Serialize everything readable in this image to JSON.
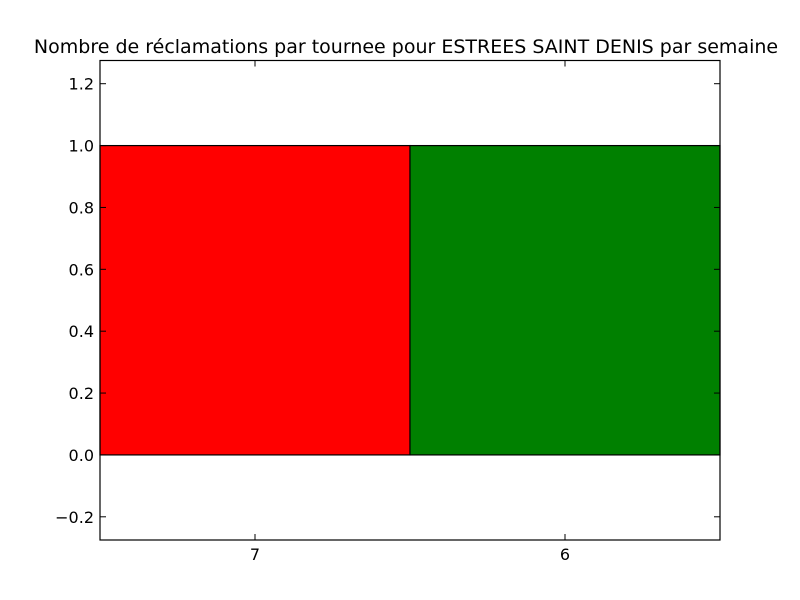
{
  "chart_data": {
    "type": "bar",
    "title": "Nombre de réclamations par tournee pour ESTREES SAINT DENIS par semaine",
    "xlabel": "",
    "ylabel": "",
    "categories": [
      "7",
      "6"
    ],
    "values": [
      1,
      1
    ],
    "bar_colors": [
      "#ff0000",
      "#008000"
    ],
    "ylim": [
      -0.275,
      1.275
    ],
    "yticks": [
      -0.2,
      0.0,
      0.2,
      0.4,
      0.6,
      0.8,
      1.0,
      1.2
    ],
    "ytick_labels": [
      "−0.2",
      "0.0",
      "0.2",
      "0.4",
      "0.6",
      "0.8",
      "1.0",
      "1.2"
    ],
    "grid": false,
    "legend": "none"
  }
}
